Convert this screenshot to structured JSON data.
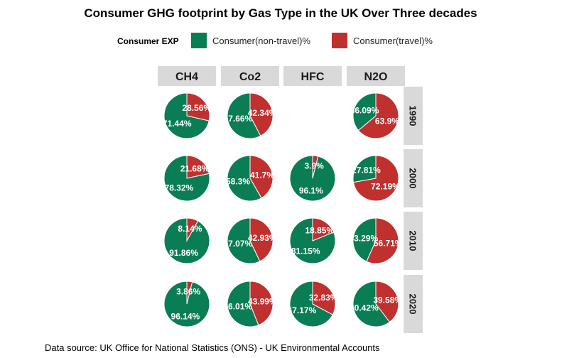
{
  "chart_data": {
    "type": "pie",
    "title": "Consumer GHG footprint by Gas Type in the UK Over Three decades",
    "caption": "Data source: UK Office for National Statistics (ONS) - UK Environmental Accounts",
    "legend": {
      "title": "Consumer EXP",
      "position": "top",
      "items": [
        {
          "name": "Consumer(non-travel)%",
          "color": "#0a7d55"
        },
        {
          "name": "Consumer(travel)%",
          "color": "#c0302f"
        }
      ]
    },
    "columns": [
      "CH4",
      "Co2",
      "HFC",
      "N2O"
    ],
    "rows": [
      "1990",
      "2000",
      "2010",
      "2020"
    ],
    "panels": [
      {
        "gas": "CH4",
        "year": "1990",
        "non_travel": 71.44,
        "travel": 28.56,
        "non_travel_label": "71.44%",
        "travel_label": "28.56%"
      },
      {
        "gas": "Co2",
        "year": "1990",
        "non_travel": 57.66,
        "travel": 42.34,
        "non_travel_label": "57.66%",
        "travel_label": "42.34%"
      },
      {
        "gas": "N2O",
        "year": "1990",
        "non_travel": 36.09,
        "travel": 63.9,
        "non_travel_label": "36.09%",
        "travel_label": "63.9%"
      },
      {
        "gas": "CH4",
        "year": "2000",
        "non_travel": 78.32,
        "travel": 21.68,
        "non_travel_label": "78.32%",
        "travel_label": "21.68%"
      },
      {
        "gas": "Co2",
        "year": "2000",
        "non_travel": 58.3,
        "travel": 41.7,
        "non_travel_label": "58.3%",
        "travel_label": "41.7%"
      },
      {
        "gas": "HFC",
        "year": "2000",
        "non_travel": 96.1,
        "travel": 3.9,
        "non_travel_label": "96.1%",
        "travel_label": "3.9%"
      },
      {
        "gas": "N2O",
        "year": "2000",
        "non_travel": 27.81,
        "travel": 72.19,
        "non_travel_label": "27.81%",
        "travel_label": "72.19%"
      },
      {
        "gas": "CH4",
        "year": "2010",
        "non_travel": 91.86,
        "travel": 8.14,
        "non_travel_label": "91.86%",
        "travel_label": "8.14%"
      },
      {
        "gas": "Co2",
        "year": "2010",
        "non_travel": 57.07,
        "travel": 42.93,
        "non_travel_label": "57.07%",
        "travel_label": "42.93%"
      },
      {
        "gas": "HFC",
        "year": "2010",
        "non_travel": 81.15,
        "travel": 18.85,
        "non_travel_label": "81.15%",
        "travel_label": "18.85%"
      },
      {
        "gas": "N2O",
        "year": "2010",
        "non_travel": 43.29,
        "travel": 56.71,
        "non_travel_label": "43.29%",
        "travel_label": "56.71%"
      },
      {
        "gas": "CH4",
        "year": "2020",
        "non_travel": 96.14,
        "travel": 3.86,
        "non_travel_label": "96.14%",
        "travel_label": "3.86%"
      },
      {
        "gas": "Co2",
        "year": "2020",
        "non_travel": 56.01,
        "travel": 43.99,
        "non_travel_label": "56.01%",
        "travel_label": "43.99%"
      },
      {
        "gas": "HFC",
        "year": "2020",
        "non_travel": 67.17,
        "travel": 32.83,
        "non_travel_label": "67.17%",
        "travel_label": "32.83%"
      },
      {
        "gas": "N2O",
        "year": "2020",
        "non_travel": 60.42,
        "travel": 39.58,
        "non_travel_label": "60.42%",
        "travel_label": "39.58%"
      }
    ]
  }
}
